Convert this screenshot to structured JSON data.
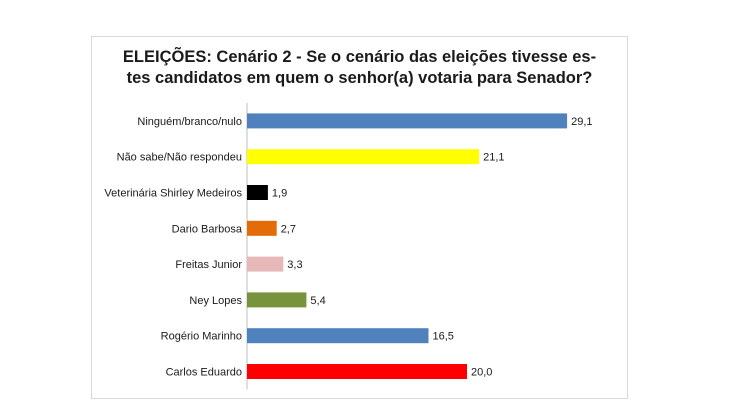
{
  "chart_data": {
    "type": "bar",
    "orientation": "horizontal",
    "title_lines": [
      "ELEIÇÕES: Cenário 2 - Se o cenário das eleições tivesse es-",
      "tes candidatos em quem o senhor(a) votaria para Senador?"
    ],
    "categories": [
      "Ninguém/branco/nulo",
      "Não sabe/Não respondeu",
      "Veterinária Shirley Medeiros",
      "Dario Barbosa",
      "Freitas Junior",
      "Ney Lopes",
      "Rogério Marinho",
      "Carlos Eduardo"
    ],
    "values": [
      29.1,
      21.1,
      1.9,
      2.7,
      3.3,
      5.4,
      16.5,
      20.0
    ],
    "value_labels": [
      "29,1",
      "21,1",
      "1,9",
      "2,7",
      "3,3",
      "5,4",
      "16,5",
      "20,0"
    ],
    "colors": [
      "#4f81bd",
      "#ffff00",
      "#000000",
      "#e36c09",
      "#e6b9b8",
      "#77933c",
      "#4f81bd",
      "#ff0000"
    ],
    "xlim": [
      0,
      30
    ],
    "grid": false,
    "legend": "none"
  }
}
